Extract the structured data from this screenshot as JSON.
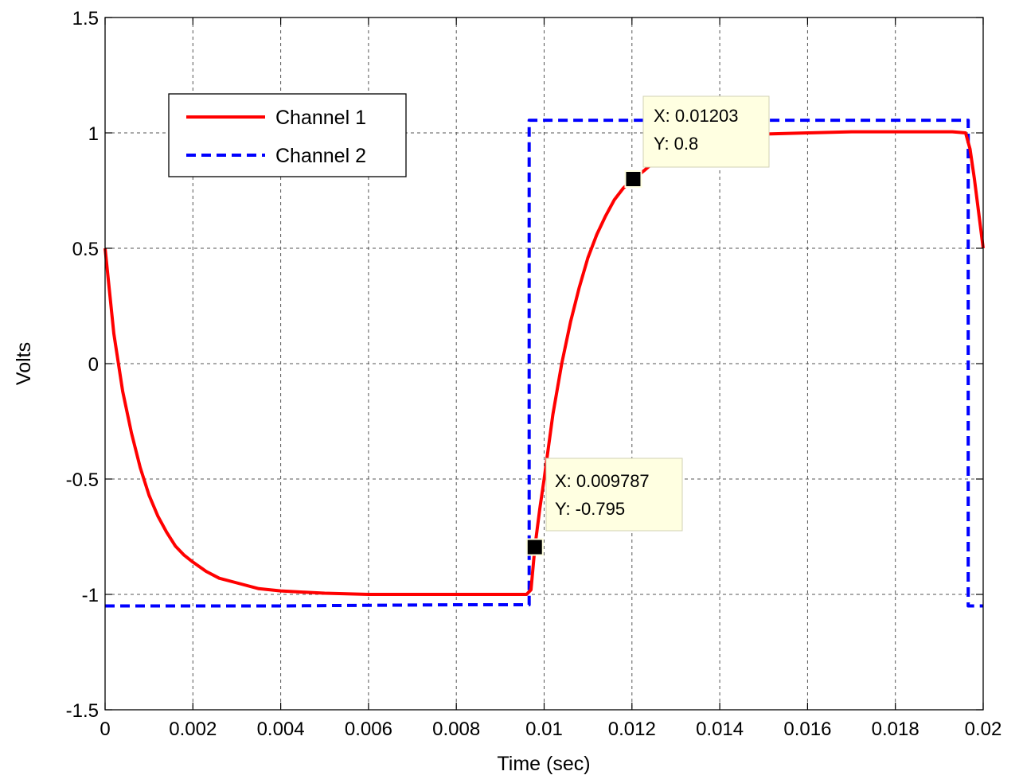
{
  "chart_data": {
    "type": "line",
    "title": "",
    "xlabel": "Time (sec)",
    "ylabel": "Volts",
    "xlim": [
      0,
      0.02
    ],
    "ylim": [
      -1.5,
      1.5
    ],
    "grid": true,
    "legend_position": "top-left",
    "x_ticks": [
      0,
      0.002,
      0.004,
      0.006,
      0.008,
      0.01,
      0.012,
      0.014,
      0.016,
      0.018,
      0.02
    ],
    "x_tick_labels": [
      "0",
      "0.002",
      "0.004",
      "0.006",
      "0.008",
      "0.01",
      "0.012",
      "0.014",
      "0.016",
      "0.018",
      "0.02"
    ],
    "y_ticks": [
      -1.5,
      -1,
      -0.5,
      0,
      0.5,
      1,
      1.5
    ],
    "y_tick_labels": [
      "-1.5",
      "-1",
      "-0.5",
      "0",
      "0.5",
      "1",
      "1.5"
    ],
    "series": [
      {
        "name": "Channel 1",
        "color": "#ff0000",
        "line_style": "solid",
        "x": [
          0,
          0.0002,
          0.0004,
          0.0006,
          0.0008,
          0.001,
          0.0012,
          0.0014,
          0.0016,
          0.0018,
          0.002,
          0.0023,
          0.0026,
          0.003,
          0.0035,
          0.004,
          0.0045,
          0.005,
          0.006,
          0.007,
          0.008,
          0.0093,
          0.0096,
          0.0097,
          0.00979,
          0.0099,
          0.01,
          0.0102,
          0.0104,
          0.0106,
          0.0108,
          0.011,
          0.0112,
          0.0114,
          0.0116,
          0.0118,
          0.01203,
          0.0123,
          0.0126,
          0.013,
          0.0135,
          0.014,
          0.015,
          0.016,
          0.017,
          0.018,
          0.0193,
          0.0196,
          0.0197,
          0.0198,
          0.0199,
          0.02
        ],
        "y": [
          0.5,
          0.13,
          -0.12,
          -0.3,
          -0.45,
          -0.57,
          -0.66,
          -0.73,
          -0.79,
          -0.83,
          -0.86,
          -0.9,
          -0.93,
          -0.95,
          -0.975,
          -0.985,
          -0.99,
          -0.995,
          -1.0,
          -1.0,
          -1.0,
          -1.0,
          -1.0,
          -0.98,
          -0.795,
          -0.63,
          -0.5,
          -0.22,
          0.0,
          0.18,
          0.33,
          0.46,
          0.56,
          0.64,
          0.71,
          0.76,
          0.8,
          0.84,
          0.89,
          0.93,
          0.965,
          0.985,
          0.995,
          1.0,
          1.005,
          1.005,
          1.005,
          1.0,
          0.93,
          0.8,
          0.65,
          0.5
        ]
      },
      {
        "name": "Channel 2",
        "color": "#0000ff",
        "line_style": "dashed",
        "x": [
          0,
          0.004,
          0.008,
          0.00966,
          0.00966,
          0.014,
          0.019,
          0.01966,
          0.01966,
          0.02
        ],
        "y": [
          -1.05,
          -1.05,
          -1.045,
          -1.045,
          1.055,
          1.055,
          1.055,
          1.055,
          -1.05,
          -1.05
        ]
      }
    ],
    "annotations": [
      {
        "x": 0.01203,
        "y": 0.8,
        "x_text": "X: 0.01203",
        "y_text": "Y: 0.8"
      },
      {
        "x": 0.009787,
        "y": -0.795,
        "x_text": "X: 0.009787",
        "y_text": "Y: -0.795"
      }
    ]
  }
}
